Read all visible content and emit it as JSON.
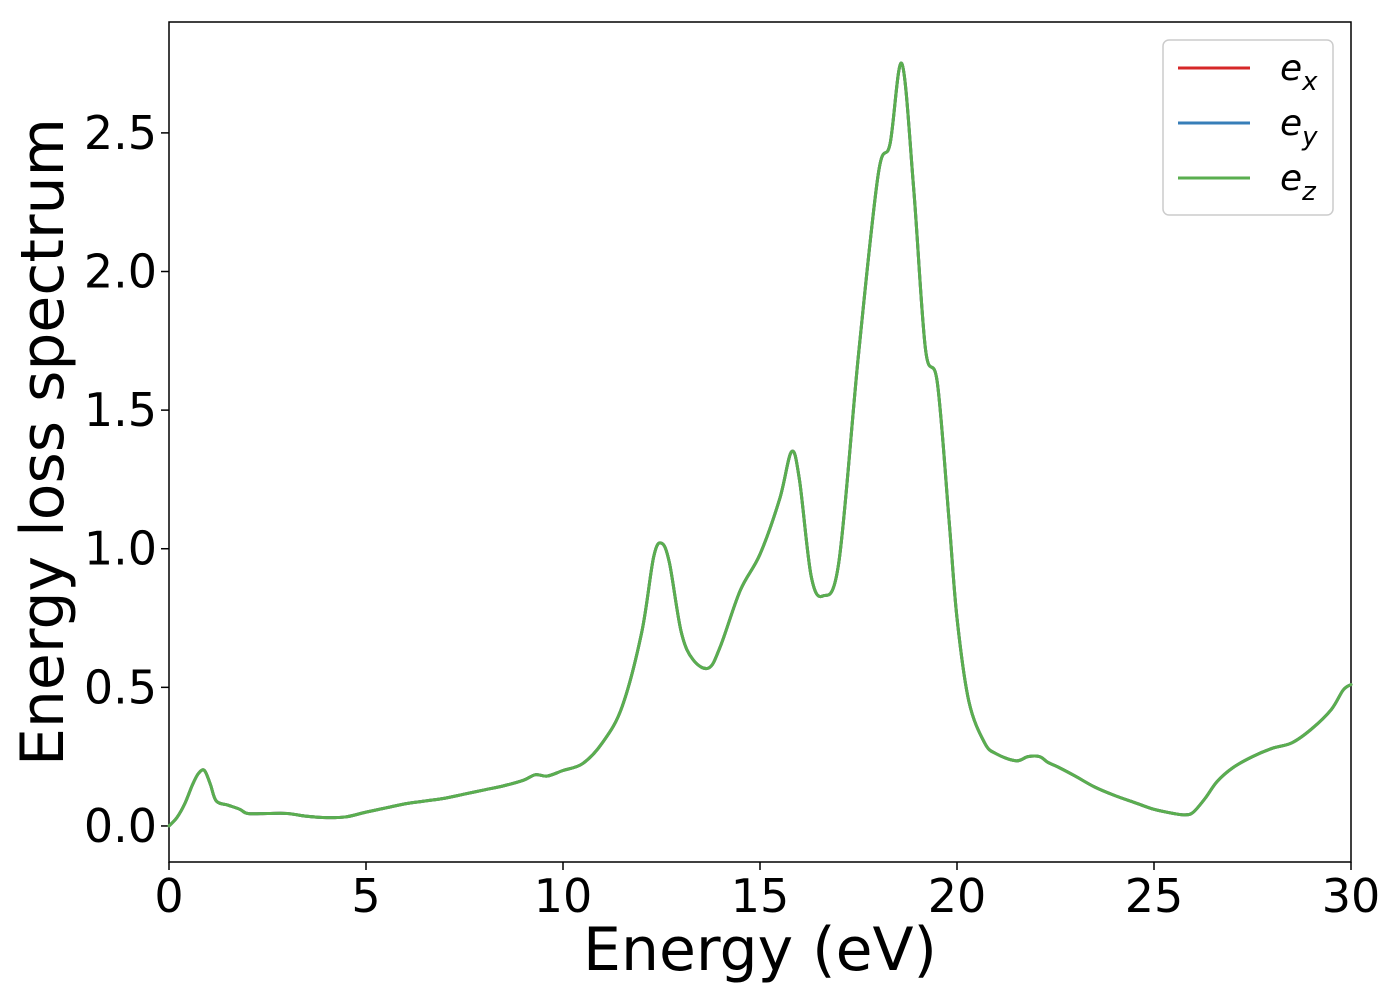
{
  "chart_data": {
    "type": "line",
    "title": "",
    "xlabel": "Energy (eV)",
    "ylabel": "Energy loss spectrum",
    "xlim": [
      0,
      30
    ],
    "ylim": [
      -0.13,
      2.9
    ],
    "xticks": [
      0,
      5,
      10,
      15,
      20,
      25,
      30
    ],
    "xtick_labels": [
      "0",
      "5",
      "10",
      "15",
      "20",
      "25",
      "30"
    ],
    "yticks": [
      0.0,
      0.5,
      1.0,
      1.5,
      2.0,
      2.5
    ],
    "ytick_labels": [
      "0.0",
      "0.5",
      "1.0",
      "1.5",
      "2.0",
      "2.5"
    ],
    "grid": false,
    "legend_position": "top-right",
    "x": [
      0,
      0.2,
      0.4,
      0.6,
      0.75,
      0.9,
      1.05,
      1.2,
      1.5,
      1.8,
      2.0,
      2.5,
      3.0,
      3.5,
      4.0,
      4.5,
      5.0,
      5.5,
      6.0,
      6.5,
      7.0,
      7.5,
      8.0,
      8.5,
      9.0,
      9.3,
      9.6,
      10.0,
      10.5,
      11.0,
      11.5,
      12.0,
      12.3,
      12.5,
      12.7,
      13.0,
      13.3,
      13.7,
      14.0,
      14.5,
      15.0,
      15.5,
      15.8,
      16.0,
      16.3,
      16.6,
      17.0,
      17.5,
      18.0,
      18.3,
      18.6,
      18.9,
      19.2,
      19.5,
      19.8,
      20.0,
      20.3,
      20.7,
      21.0,
      21.5,
      21.8,
      22.1,
      22.3,
      22.6,
      23.0,
      23.5,
      24.0,
      24.5,
      25.0,
      25.5,
      25.8,
      26.0,
      26.3,
      26.6,
      27.0,
      27.5,
      28.0,
      28.5,
      29.0,
      29.5,
      29.8,
      30.0
    ],
    "series": [
      {
        "name": "e_x",
        "label_base": "e",
        "label_sub": "x",
        "color": "#d62728",
        "values": [
          0.0,
          0.03,
          0.08,
          0.15,
          0.19,
          0.2,
          0.15,
          0.09,
          0.075,
          0.06,
          0.045,
          0.045,
          0.045,
          0.035,
          0.03,
          0.033,
          0.05,
          0.065,
          0.08,
          0.09,
          0.1,
          0.115,
          0.13,
          0.145,
          0.165,
          0.185,
          0.18,
          0.2,
          0.225,
          0.3,
          0.43,
          0.7,
          0.97,
          1.02,
          0.95,
          0.7,
          0.6,
          0.57,
          0.65,
          0.85,
          0.98,
          1.18,
          1.35,
          1.25,
          0.9,
          0.83,
          0.95,
          1.7,
          2.35,
          2.46,
          2.75,
          2.3,
          1.72,
          1.6,
          1.1,
          0.75,
          0.45,
          0.3,
          0.26,
          0.235,
          0.25,
          0.25,
          0.23,
          0.21,
          0.18,
          0.14,
          0.11,
          0.085,
          0.06,
          0.045,
          0.04,
          0.05,
          0.1,
          0.16,
          0.21,
          0.25,
          0.28,
          0.3,
          0.35,
          0.42,
          0.49,
          0.51
        ]
      },
      {
        "name": "e_y",
        "label_base": "e",
        "label_sub": "y",
        "color": "#377eb8",
        "values": [
          0.0,
          0.03,
          0.08,
          0.15,
          0.19,
          0.2,
          0.15,
          0.09,
          0.075,
          0.06,
          0.045,
          0.045,
          0.045,
          0.035,
          0.03,
          0.033,
          0.05,
          0.065,
          0.08,
          0.09,
          0.1,
          0.115,
          0.13,
          0.145,
          0.165,
          0.185,
          0.18,
          0.2,
          0.225,
          0.3,
          0.43,
          0.7,
          0.97,
          1.02,
          0.95,
          0.7,
          0.6,
          0.57,
          0.65,
          0.85,
          0.98,
          1.18,
          1.35,
          1.25,
          0.9,
          0.83,
          0.95,
          1.7,
          2.35,
          2.46,
          2.75,
          2.3,
          1.72,
          1.6,
          1.1,
          0.75,
          0.45,
          0.3,
          0.26,
          0.235,
          0.25,
          0.25,
          0.23,
          0.21,
          0.18,
          0.14,
          0.11,
          0.085,
          0.06,
          0.045,
          0.04,
          0.05,
          0.1,
          0.16,
          0.21,
          0.25,
          0.28,
          0.3,
          0.35,
          0.42,
          0.49,
          0.51
        ]
      },
      {
        "name": "e_z",
        "label_base": "e",
        "label_sub": "z",
        "color": "#5aae4f",
        "values": [
          0.0,
          0.03,
          0.08,
          0.15,
          0.19,
          0.2,
          0.15,
          0.09,
          0.075,
          0.06,
          0.045,
          0.045,
          0.045,
          0.035,
          0.03,
          0.033,
          0.05,
          0.065,
          0.08,
          0.09,
          0.1,
          0.115,
          0.13,
          0.145,
          0.165,
          0.185,
          0.18,
          0.2,
          0.225,
          0.3,
          0.43,
          0.7,
          0.97,
          1.02,
          0.95,
          0.7,
          0.6,
          0.57,
          0.65,
          0.85,
          0.98,
          1.18,
          1.35,
          1.25,
          0.9,
          0.83,
          0.95,
          1.7,
          2.35,
          2.46,
          2.75,
          2.3,
          1.72,
          1.6,
          1.1,
          0.75,
          0.45,
          0.3,
          0.26,
          0.235,
          0.25,
          0.25,
          0.23,
          0.21,
          0.18,
          0.14,
          0.11,
          0.085,
          0.06,
          0.045,
          0.04,
          0.05,
          0.1,
          0.16,
          0.21,
          0.25,
          0.28,
          0.3,
          0.35,
          0.42,
          0.49,
          0.51
        ]
      }
    ]
  }
}
